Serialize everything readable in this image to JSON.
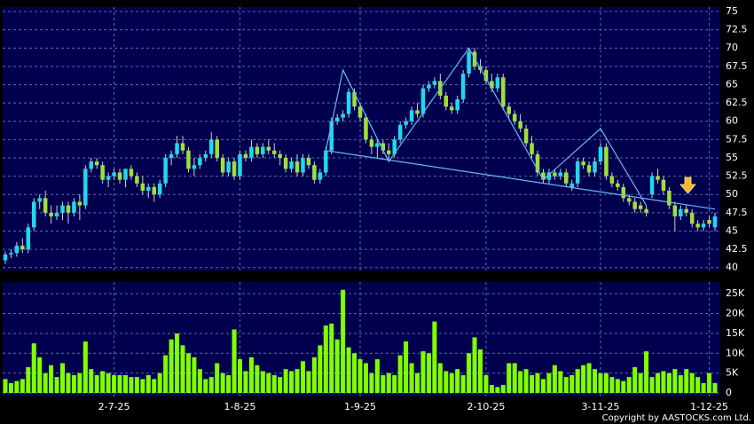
{
  "chart_data": [
    {
      "type": "candlestick",
      "categories": [
        null,
        null,
        null,
        null,
        null,
        null,
        null,
        null,
        null,
        null,
        null,
        null,
        null,
        null,
        null,
        null,
        null,
        null,
        null,
        "2-7-25",
        null,
        null,
        null,
        null,
        null,
        null,
        null,
        null,
        null,
        null,
        null,
        null,
        null,
        null,
        null,
        null,
        null,
        null,
        null,
        null,
        null,
        "1-8-25",
        null,
        null,
        null,
        null,
        null,
        null,
        null,
        null,
        null,
        null,
        null,
        null,
        null,
        null,
        null,
        null,
        null,
        null,
        null,
        null,
        "1-9-25",
        null,
        null,
        null,
        null,
        null,
        null,
        null,
        null,
        null,
        null,
        null,
        null,
        null,
        null,
        null,
        null,
        null,
        null,
        null,
        null,
        null,
        "2-10-25",
        null,
        null,
        null,
        null,
        null,
        null,
        null,
        null,
        null,
        null,
        null,
        null,
        null,
        null,
        null,
        null,
        null,
        null,
        null,
        "3-11-25",
        null,
        null,
        null,
        null,
        null,
        null,
        null,
        null,
        null,
        null,
        null,
        null,
        null,
        null,
        null,
        null,
        null,
        null,
        "1-12-25",
        null
      ],
      "open": [
        41.0,
        41.8,
        42.0,
        43.0,
        42.5,
        45.5,
        49.0,
        49.5,
        47.5,
        47.0,
        47.5,
        48.5,
        47.5,
        49.0,
        48.5,
        53.5,
        54.5,
        54.0,
        52.0,
        52.5,
        53.0,
        52.0,
        53.5,
        52.5,
        51.5,
        50.5,
        51.0,
        50.0,
        51.5,
        55.0,
        55.5,
        57.0,
        56.0,
        53.5,
        54.0,
        55.0,
        55.5,
        57.5,
        55.0,
        53.0,
        54.5,
        52.5,
        55.5,
        55.0,
        56.5,
        55.5,
        56.5,
        56.0,
        55.5,
        55.0,
        53.5,
        54.5,
        53.0,
        55.0,
        54.0,
        52.0,
        53.0,
        56.0,
        60.0,
        60.5,
        61.0,
        64.0,
        62.0,
        60.5,
        57.5,
        56.5,
        57.0,
        56.0,
        55.5,
        57.5,
        59.5,
        60.0,
        61.5,
        61.0,
        64.5,
        65.0,
        65.5,
        63.5,
        62.0,
        61.5,
        63.0,
        66.5,
        69.5,
        67.5,
        67.0,
        65.5,
        64.5,
        66.0,
        62.0,
        61.0,
        60.0,
        59.0,
        57.0,
        55.5,
        53.0,
        52.0,
        53.0,
        52.5,
        53.0,
        51.0,
        51.5,
        54.5,
        54.0,
        53.0,
        54.5,
        56.5,
        52.5,
        51.5,
        51.0,
        49.5,
        49.0,
        48.5,
        48.0,
        50.0,
        52.5,
        52.0,
        50.5,
        48.5,
        47.0,
        48.0,
        47.5,
        46.0,
        45.5,
        46.5,
        45.5
      ],
      "high": [
        42.2,
        42.5,
        43.5,
        44.0,
        46.0,
        49.5,
        50.0,
        50.5,
        48.5,
        48.5,
        49.0,
        49.0,
        49.5,
        50.0,
        54.0,
        55.0,
        55.0,
        54.5,
        53.0,
        53.5,
        53.5,
        53.5,
        54.0,
        53.0,
        52.5,
        51.5,
        51.5,
        52.0,
        55.5,
        56.0,
        58.0,
        58.0,
        56.5,
        55.0,
        55.5,
        56.0,
        58.5,
        58.0,
        55.5,
        55.0,
        55.0,
        56.0,
        56.0,
        57.5,
        57.0,
        57.0,
        57.5,
        57.0,
        56.0,
        55.5,
        55.0,
        55.5,
        55.5,
        55.5,
        54.5,
        53.5,
        56.5,
        60.5,
        61.0,
        61.5,
        64.5,
        64.5,
        62.5,
        61.0,
        58.0,
        57.5,
        57.5,
        57.0,
        58.0,
        60.0,
        60.5,
        62.0,
        62.5,
        65.0,
        65.5,
        66.0,
        66.5,
        64.0,
        62.5,
        63.5,
        67.0,
        70.0,
        70.0,
        68.5,
        67.5,
        66.5,
        66.5,
        66.5,
        62.5,
        61.5,
        61.0,
        59.5,
        58.0,
        56.0,
        53.5,
        53.5,
        53.5,
        53.5,
        53.5,
        52.0,
        55.0,
        55.0,
        54.5,
        55.0,
        57.0,
        57.0,
        53.0,
        52.0,
        51.5,
        50.0,
        49.5,
        49.0,
        48.5,
        53.0,
        53.5,
        52.5,
        51.0,
        49.0,
        48.5,
        48.5,
        48.0,
        46.5,
        46.5,
        47.0,
        47.5
      ],
      "low": [
        40.5,
        41.3,
        41.5,
        42.0,
        42.0,
        45.0,
        48.0,
        47.0,
        46.0,
        46.5,
        46.5,
        46.0,
        47.0,
        46.5,
        48.0,
        53.0,
        53.5,
        51.5,
        51.0,
        52.0,
        51.5,
        51.0,
        52.0,
        51.0,
        50.0,
        49.5,
        49.0,
        49.5,
        51.0,
        54.0,
        55.0,
        55.5,
        53.0,
        52.5,
        53.5,
        54.5,
        55.0,
        54.5,
        52.5,
        52.5,
        52.0,
        52.0,
        54.5,
        54.5,
        55.0,
        55.0,
        55.5,
        55.0,
        54.0,
        53.0,
        53.0,
        52.5,
        52.5,
        53.5,
        51.5,
        51.5,
        52.5,
        55.5,
        59.5,
        60.0,
        60.5,
        61.5,
        60.0,
        57.0,
        55.5,
        55.0,
        55.5,
        54.5,
        55.0,
        57.0,
        59.0,
        59.5,
        60.5,
        60.5,
        64.0,
        64.5,
        63.0,
        61.5,
        61.0,
        61.0,
        62.5,
        66.0,
        67.0,
        66.5,
        65.0,
        64.0,
        64.0,
        61.5,
        60.5,
        59.5,
        58.5,
        56.5,
        55.0,
        52.5,
        51.5,
        51.5,
        52.0,
        52.0,
        51.0,
        50.5,
        51.0,
        53.5,
        52.5,
        52.5,
        54.0,
        52.0,
        51.0,
        50.5,
        49.0,
        48.5,
        47.5,
        47.5,
        47.0,
        49.5,
        51.5,
        50.0,
        48.0,
        45.0,
        46.5,
        47.0,
        45.5,
        45.0,
        45.0,
        45.5,
        45.0
      ],
      "close": [
        41.8,
        42.0,
        43.0,
        42.5,
        45.5,
        49.0,
        49.5,
        47.5,
        47.0,
        47.5,
        48.5,
        47.5,
        49.0,
        48.5,
        53.5,
        54.5,
        54.0,
        52.0,
        52.5,
        53.0,
        52.0,
        53.5,
        52.5,
        51.5,
        50.5,
        51.0,
        50.0,
        51.5,
        55.0,
        55.5,
        57.0,
        56.0,
        53.5,
        54.0,
        55.0,
        55.5,
        57.5,
        55.0,
        53.0,
        54.5,
        52.5,
        55.5,
        55.0,
        56.5,
        55.5,
        56.5,
        56.0,
        55.5,
        55.0,
        53.5,
        54.5,
        53.0,
        55.0,
        54.0,
        52.0,
        53.0,
        56.0,
        60.0,
        60.5,
        61.0,
        64.0,
        62.0,
        60.5,
        57.5,
        56.5,
        57.0,
        56.0,
        55.5,
        57.5,
        59.5,
        60.0,
        61.5,
        61.0,
        64.5,
        65.0,
        65.5,
        63.5,
        62.0,
        61.5,
        63.0,
        66.5,
        69.5,
        67.5,
        67.0,
        65.5,
        64.5,
        66.0,
        62.0,
        61.0,
        60.0,
        59.0,
        57.0,
        55.5,
        53.0,
        52.0,
        53.0,
        52.5,
        53.0,
        51.5,
        51.5,
        54.5,
        54.0,
        53.0,
        54.5,
        56.5,
        52.5,
        51.5,
        51.0,
        49.5,
        49.0,
        48.0,
        48.0,
        47.5,
        52.5,
        52.0,
        50.5,
        48.5,
        47.0,
        48.0,
        47.5,
        46.0,
        45.5,
        46.0,
        46.0,
        47.0
      ],
      "up_color": "#1fd8f0",
      "down_color": "#9ee03a",
      "wick_color": "#d0d0d0",
      "ylim": [
        39.6,
        75.6
      ],
      "yticks": [
        40,
        42.5,
        45,
        47.5,
        50,
        52.5,
        55,
        57.5,
        60,
        62.5,
        65,
        67.5,
        70,
        72.5,
        75
      ],
      "grid": true,
      "trendlines": [
        {
          "color": "#6ab8f0",
          "x": [
            56,
            59,
            67,
            81,
            94,
            104,
            112
          ],
          "y": [
            56,
            67,
            54.5,
            70,
            52,
            59,
            48.5
          ]
        },
        {
          "color": "#6ab8f0",
          "x": [
            56,
            124
          ],
          "y": [
            56,
            48
          ]
        }
      ]
    },
    {
      "type": "bar",
      "values": [
        3500,
        2500,
        3000,
        3500,
        6500,
        12500,
        9000,
        5000,
        7000,
        4000,
        7500,
        5000,
        4500,
        5000,
        13000,
        6000,
        4500,
        5500,
        5000,
        4500,
        4500,
        4500,
        4000,
        4000,
        3500,
        4500,
        3500,
        5000,
        9500,
        13500,
        15000,
        12000,
        10000,
        9000,
        6000,
        3500,
        4000,
        7500,
        5000,
        4500,
        16000,
        8500,
        5500,
        9000,
        7000,
        5500,
        5000,
        4500,
        4000,
        6000,
        5500,
        6000,
        8000,
        5500,
        9000,
        12000,
        17000,
        17500,
        13500,
        26000,
        11500,
        10000,
        8500,
        7500,
        5000,
        8500,
        4500,
        5000,
        4500,
        9500,
        13000,
        7500,
        5000,
        10500,
        10000,
        18000,
        7500,
        5500,
        5000,
        6000,
        4500,
        10000,
        14000,
        11000,
        4500,
        2000,
        1500,
        2000,
        7500,
        7500,
        5500,
        6000,
        4500,
        5000,
        3500,
        5000,
        7000,
        5500,
        4000,
        4500,
        6000,
        7000,
        7500,
        6000,
        5000,
        5000,
        4000,
        3500,
        3000,
        4000,
        6500,
        5000,
        10500,
        4000,
        5000,
        5500,
        5000,
        6000,
        4500,
        6000,
        5000,
        4000,
        2500,
        5000,
        2500
      ],
      "color": "#80ff00",
      "ylim": [
        0,
        27500
      ],
      "yticks": [
        0,
        {
          "value": 5000,
          "label": "5K"
        },
        {
          "value": 10000,
          "label": "10K"
        },
        {
          "value": 15000,
          "label": "15K"
        },
        {
          "value": 20000,
          "label": "20K"
        },
        {
          "value": 25000,
          "label": "25K"
        }
      ],
      "grid": true
    }
  ],
  "copyright": "Copyright by AASTOCKS.com Ltd."
}
